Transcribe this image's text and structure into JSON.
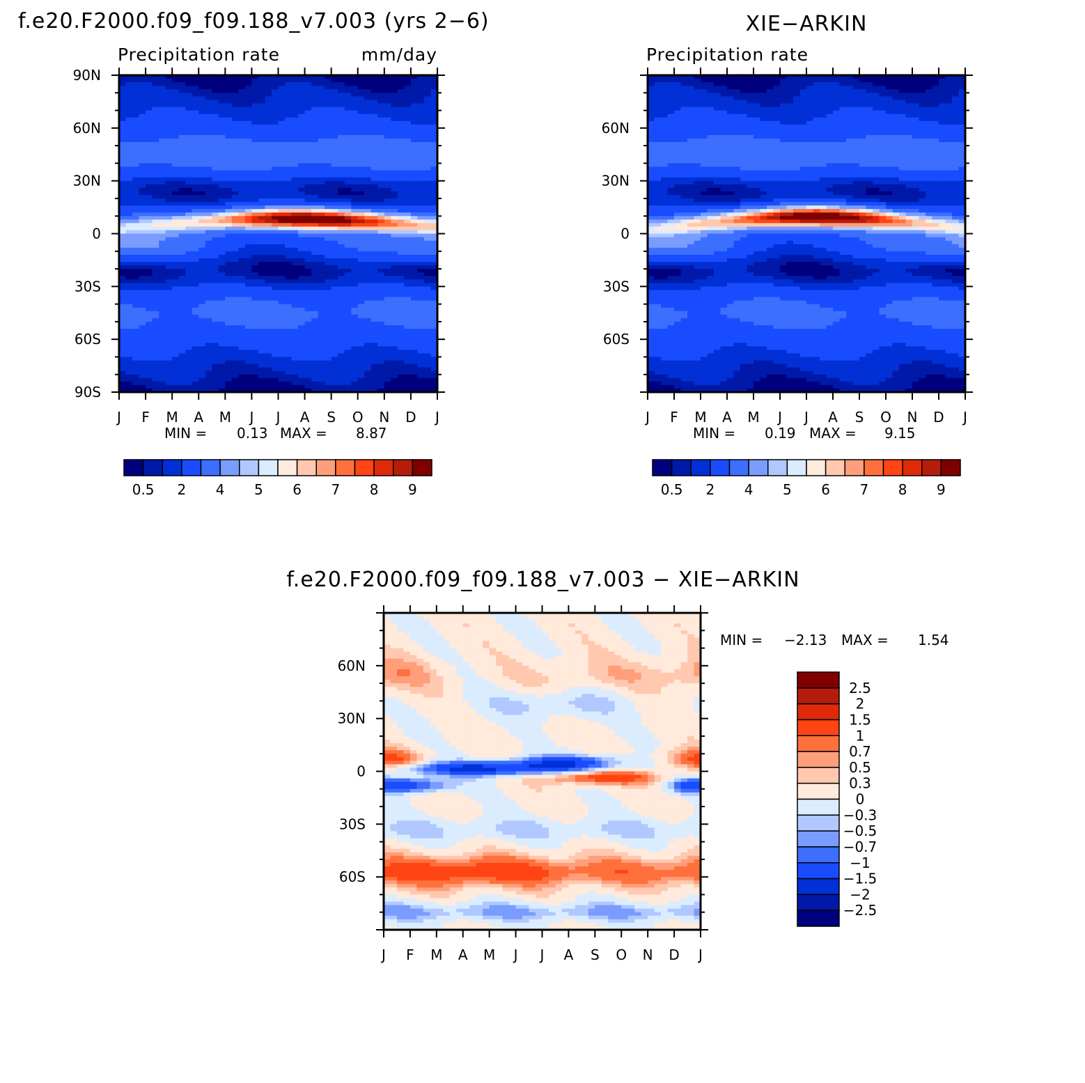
{
  "colors": {
    "model_scale": [
      "#00007f",
      "#0019a8",
      "#0030d6",
      "#1a4cff",
      "#3d6fff",
      "#7a9cff",
      "#b0c8ff",
      "#dbecff",
      "#ffeadb",
      "#ffc8af",
      "#ff9e7a",
      "#ff713c",
      "#ff4514",
      "#e02a0a",
      "#b51d0a",
      "#800000"
    ],
    "diff_scale": [
      "#00007f",
      "#0019a8",
      "#0030d6",
      "#1a4cff",
      "#3d6fff",
      "#7a9cff",
      "#b0c8ff",
      "#dbecff",
      "#ffeadb",
      "#ffc8af",
      "#ff9e7a",
      "#ff713c",
      "#ff4514",
      "#e02a0a",
      "#b51d0a",
      "#800000"
    ]
  },
  "chart_data": [
    {
      "id": "model",
      "type": "heatmap",
      "title": "f.e20.F2000.f09_f09.188_v7.003 (yrs 2−6)",
      "subtitle_left": "Precipitation rate",
      "subtitle_right": "mm/day",
      "x_ticks": [
        "J",
        "F",
        "M",
        "A",
        "M",
        "J",
        "J",
        "A",
        "S",
        "O",
        "N",
        "D",
        "J"
      ],
      "y_ticks": [
        "90N",
        "60N",
        "30N",
        "0",
        "30S",
        "60S",
        "90S"
      ],
      "y_range": [
        -90,
        90
      ],
      "min_label": "MIN =",
      "min_value": "0.13",
      "max_label": "MAX =",
      "max_value": "8.87",
      "levels": [
        "0.5",
        "2",
        "4",
        "5",
        "6",
        "7",
        "8",
        "9"
      ],
      "itcz": {
        "lat_start": 3,
        "lat_peak": 8,
        "lat_end": 5,
        "peak_month": 7.3,
        "peak_value": 8.87
      },
      "min": 0.13,
      "max": 8.87
    },
    {
      "id": "obs",
      "type": "heatmap",
      "title": "XIE−ARKIN",
      "subtitle_left": "Precipitation rate",
      "x_ticks": [
        "J",
        "F",
        "M",
        "A",
        "M",
        "J",
        "J",
        "A",
        "S",
        "O",
        "N",
        "D",
        "J"
      ],
      "y_ticks": [
        "60N",
        "30N",
        "0",
        "30S",
        "60S"
      ],
      "y_range": [
        -90,
        90
      ],
      "min_label": "MIN =",
      "min_value": "0.19",
      "max_label": "MAX =",
      "max_value": "9.15",
      "levels": [
        "0.5",
        "2",
        "4",
        "5",
        "6",
        "7",
        "8",
        "9"
      ],
      "itcz": {
        "lat_start": 2,
        "lat_peak": 9,
        "lat_end": 4,
        "peak_month": 6.5,
        "peak_value": 9.15
      },
      "min": 0.19,
      "max": 9.15
    },
    {
      "id": "diff",
      "type": "heatmap",
      "title": "f.e20.F2000.f09_f09.188_v7.003 − XIE−ARKIN",
      "x_ticks": [
        "J",
        "F",
        "M",
        "A",
        "M",
        "J",
        "J",
        "A",
        "S",
        "O",
        "N",
        "D",
        "J"
      ],
      "y_ticks": [
        "60N",
        "30N",
        "0",
        "30S",
        "60S"
      ],
      "y_range": [
        -90,
        90
      ],
      "min_label": "MIN =",
      "min_value": "−2.13",
      "max_label": "MAX =",
      "max_value": "1.54",
      "levels": [
        "2.5",
        "2",
        "1.5",
        "1",
        "0.7",
        "0.5",
        "0.3",
        "0",
        "−0.3",
        "−0.5",
        "−0.7",
        "−1",
        "−1.5",
        "−2",
        "−2.5"
      ],
      "min": -2.13,
      "max": 1.54
    }
  ]
}
